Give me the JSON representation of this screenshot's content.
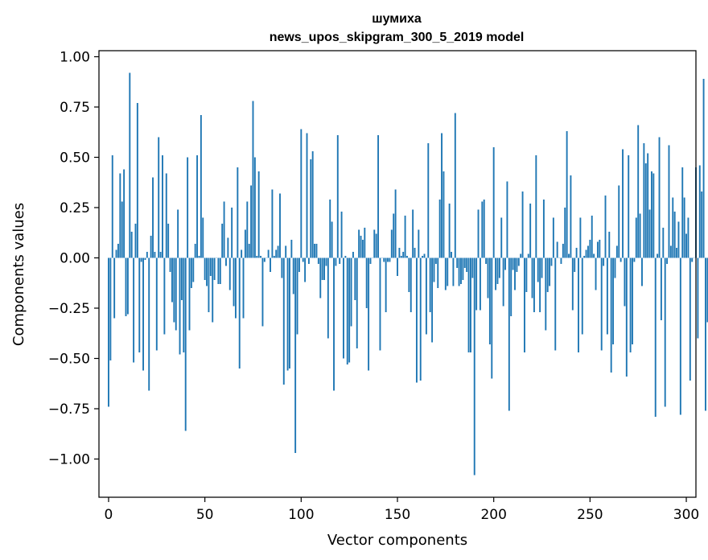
{
  "chart_data": {
    "type": "bar",
    "title": "шумиха",
    "subtitle": "news_upos_skipgram_300_5_2019 model",
    "xlabel": "Vector components",
    "ylabel": "Components values",
    "xlim": [
      -5,
      305
    ],
    "ylim": [
      -1.19,
      1.03
    ],
    "xticks": [
      0,
      50,
      100,
      150,
      200,
      250,
      300
    ],
    "xtick_labels": [
      "0",
      "50",
      "100",
      "150",
      "200",
      "250",
      "300"
    ],
    "yticks": [
      1.0,
      0.75,
      0.5,
      0.25,
      0.0,
      -0.25,
      -0.5,
      -0.75,
      -1.0
    ],
    "ytick_labels": [
      "1.00",
      "0.75",
      "0.50",
      "0.25",
      "0.00",
      "−0.25",
      "−0.50",
      "−0.75",
      "−1.00"
    ],
    "grid": false,
    "bar_color": "#1f77b4",
    "values": [
      -0.74,
      -0.51,
      0.51,
      -0.3,
      0.04,
      0.07,
      0.42,
      0.28,
      0.44,
      -0.29,
      -0.28,
      0.92,
      0.13,
      -0.52,
      0.17,
      0.77,
      -0.47,
      -0.02,
      -0.56,
      -0.01,
      0.03,
      -0.66,
      0.11,
      0.4,
      0.03,
      -0.46,
      0.6,
      0.03,
      0.51,
      -0.38,
      0.42,
      0.17,
      -0.07,
      -0.22,
      -0.32,
      -0.36,
      0.24,
      -0.48,
      -0.21,
      -0.47,
      -0.86,
      0.5,
      -0.36,
      -0.15,
      -0.12,
      0.07,
      0.51,
      0.01,
      0.71,
      0.2,
      -0.11,
      -0.14,
      -0.27,
      -0.09,
      -0.32,
      -0.11,
      0.0,
      -0.13,
      -0.13,
      0.17,
      0.28,
      -0.04,
      0.1,
      -0.16,
      0.25,
      -0.24,
      -0.3,
      0.45,
      -0.55,
      0.04,
      -0.3,
      0.14,
      0.28,
      0.07,
      0.36,
      0.78,
      0.5,
      0.01,
      0.43,
      0.01,
      -0.34,
      -0.02,
      0.0,
      0.04,
      -0.07,
      0.34,
      0.01,
      0.04,
      0.06,
      0.32,
      -0.1,
      -0.63,
      0.06,
      -0.56,
      -0.55,
      0.09,
      -0.18,
      -0.97,
      -0.38,
      -0.07,
      0.64,
      -0.02,
      -0.12,
      0.62,
      -0.03,
      0.49,
      0.53,
      0.07,
      0.07,
      -0.03,
      -0.2,
      -0.11,
      -0.11,
      -0.04,
      -0.4,
      0.29,
      0.18,
      -0.66,
      -0.04,
      0.61,
      -0.03,
      0.23,
      -0.5,
      0.01,
      -0.53,
      -0.52,
      -0.34,
      0.03,
      -0.21,
      -0.45,
      0.14,
      0.11,
      0.09,
      0.15,
      -0.25,
      -0.56,
      -0.03,
      0.0,
      0.14,
      0.12,
      0.61,
      -0.46,
      0.0,
      -0.02,
      -0.27,
      -0.02,
      -0.02,
      0.14,
      0.22,
      0.34,
      -0.09,
      0.05,
      0.01,
      0.03,
      0.21,
      0.01,
      -0.17,
      -0.27,
      0.24,
      0.05,
      -0.62,
      0.14,
      -0.61,
      0.01,
      0.02,
      -0.38,
      0.57,
      -0.27,
      -0.42,
      -0.12,
      -0.03,
      -0.15,
      0.29,
      0.62,
      0.43,
      -0.16,
      -0.14,
      0.27,
      0.03,
      -0.14,
      0.72,
      -0.05,
      -0.14,
      -0.13,
      -0.11,
      -0.05,
      -0.07,
      -0.47,
      -0.47,
      -0.1,
      -1.08,
      -0.26,
      0.24,
      -0.26,
      0.28,
      0.29,
      -0.03,
      -0.2,
      -0.43,
      -0.6,
      0.55,
      -0.16,
      -0.13,
      -0.1,
      0.2,
      -0.24,
      -0.06,
      0.38,
      -0.76,
      -0.29,
      -0.06,
      -0.16,
      -0.07,
      -0.04,
      0.02,
      0.33,
      -0.47,
      -0.17,
      0.02,
      0.27,
      -0.2,
      -0.27,
      0.51,
      -0.12,
      -0.27,
      -0.1,
      0.29,
      -0.36,
      -0.17,
      -0.14,
      -0.04,
      0.2,
      -0.46,
      0.08,
      0.0,
      -0.03,
      0.07,
      0.25,
      0.63,
      0.02,
      0.41,
      -0.26,
      -0.07,
      0.05,
      -0.47,
      0.2,
      -0.38,
      0.01,
      0.04,
      0.06,
      0.09,
      0.21,
      0.02,
      -0.16,
      0.08,
      0.09,
      -0.46,
      -0.04,
      0.31,
      -0.38,
      0.13,
      -0.57,
      -0.43,
      -0.1,
      0.06,
      0.36,
      -0.02,
      0.54,
      -0.24,
      -0.59,
      0.51,
      -0.47,
      -0.43,
      -0.02,
      0.2,
      0.66,
      0.22,
      -0.14,
      0.57,
      0.47,
      0.52,
      0.24,
      0.43,
      0.42,
      -0.79,
      0.02,
      0.6,
      -0.31,
      0.15,
      -0.74,
      -0.03,
      0.56,
      0.06,
      0.3,
      0.23,
      0.05,
      0.18,
      -0.78,
      0.45,
      0.3,
      0.12,
      0.2,
      -0.61,
      -0.02,
      0.0,
      0.45,
      -0.4,
      0.46,
      0.33,
      0.89,
      -0.76,
      -0.32
    ]
  }
}
